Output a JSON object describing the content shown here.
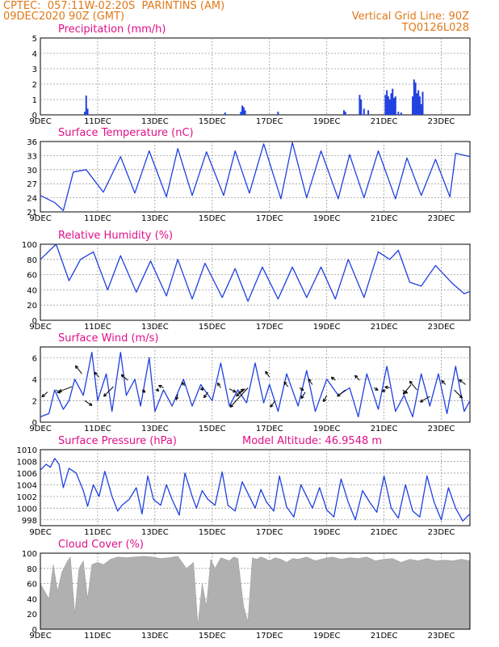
{
  "header": {
    "line1": "CPTEC:  057:11W-02:20S  PARINTINS (AM)",
    "line2": "09DEC2020 90Z (GMT)",
    "grid_note": "Vertical Grid Line: 90Z",
    "code": "TQ0126L028"
  },
  "colors": {
    "header": "#e07818",
    "title": "#e0108a",
    "line": "#2040e0",
    "bar": "#2040e0",
    "cloud": "#b0b0b0",
    "grid": "#999999"
  },
  "x_ticks": [
    "9DEC",
    "11DEC",
    "13DEC",
    "15DEC",
    "17DEC",
    "19DEC",
    "21DEC",
    "23DEC"
  ],
  "chart_data": [
    {
      "type": "bar",
      "title": "Precipitation (mm/h)",
      "ylim": [
        0,
        5
      ],
      "yticks": [
        "0",
        "1",
        "2",
        "3",
        "4",
        "5"
      ],
      "x_start": "9DEC",
      "x_end": "24DEC",
      "bars": [
        {
          "day": 1.55,
          "value": 0.2
        },
        {
          "day": 1.6,
          "value": 1.25
        },
        {
          "day": 1.65,
          "value": 0.4
        },
        {
          "day": 6.45,
          "value": 0.15
        },
        {
          "day": 7.0,
          "value": 0.2
        },
        {
          "day": 7.05,
          "value": 0.6
        },
        {
          "day": 7.1,
          "value": 0.5
        },
        {
          "day": 7.15,
          "value": 0.3
        },
        {
          "day": 8.3,
          "value": 0.2
        },
        {
          "day": 10.6,
          "value": 0.3
        },
        {
          "day": 10.65,
          "value": 0.2
        },
        {
          "day": 11.15,
          "value": 1.3
        },
        {
          "day": 11.2,
          "value": 1.0
        },
        {
          "day": 11.3,
          "value": 0.4
        },
        {
          "day": 11.45,
          "value": 0.3
        },
        {
          "day": 12.05,
          "value": 1.3
        },
        {
          "day": 12.1,
          "value": 1.6
        },
        {
          "day": 12.15,
          "value": 1.2
        },
        {
          "day": 12.2,
          "value": 1.0
        },
        {
          "day": 12.25,
          "value": 1.4
        },
        {
          "day": 12.3,
          "value": 1.7
        },
        {
          "day": 12.35,
          "value": 1.1
        },
        {
          "day": 12.4,
          "value": 1.2
        },
        {
          "day": 12.5,
          "value": 0.2
        },
        {
          "day": 12.6,
          "value": 0.15
        },
        {
          "day": 13.0,
          "value": 1.2
        },
        {
          "day": 13.05,
          "value": 2.3
        },
        {
          "day": 13.1,
          "value": 2.1
        },
        {
          "day": 13.15,
          "value": 1.4
        },
        {
          "day": 13.2,
          "value": 1.6
        },
        {
          "day": 13.25,
          "value": 1.2
        },
        {
          "day": 13.3,
          "value": 0.7
        },
        {
          "day": 13.35,
          "value": 1.5
        }
      ]
    },
    {
      "type": "line",
      "title": "Surface Temperature (nC)",
      "ylim": [
        21,
        36
      ],
      "yticks": [
        "21",
        "24",
        "27",
        "30",
        "33",
        "36"
      ],
      "x": [
        0,
        0.5,
        0.8,
        1.15,
        1.6,
        2.2,
        2.8,
        3.3,
        3.8,
        4.4,
        4.8,
        5.3,
        5.8,
        6.4,
        6.8,
        7.3,
        7.8,
        8.4,
        8.8,
        9.3,
        9.8,
        10.4,
        10.8,
        11.3,
        11.8,
        12.4,
        12.8,
        13.3,
        13.8,
        14.3,
        14.5,
        15.0
      ],
      "y": [
        24.5,
        23.0,
        21.3,
        29.5,
        30.0,
        25.2,
        32.8,
        25.0,
        34.0,
        24.2,
        34.5,
        24.5,
        33.8,
        24.5,
        34.0,
        25.0,
        35.5,
        23.8,
        35.8,
        24.0,
        34.0,
        23.8,
        33.2,
        24.0,
        34.0,
        23.8,
        32.5,
        24.5,
        32.2,
        24.2,
        33.5,
        32.8
      ]
    },
    {
      "type": "line",
      "title": "Relative Humidity (%)",
      "ylim": [
        0,
        100
      ],
      "yticks": [
        "0",
        "20",
        "40",
        "60",
        "80",
        "100"
      ],
      "x": [
        0,
        0.55,
        1.0,
        1.4,
        1.85,
        2.35,
        2.8,
        3.35,
        3.85,
        4.4,
        4.8,
        5.3,
        5.75,
        6.35,
        6.8,
        7.25,
        7.75,
        8.3,
        8.8,
        9.3,
        9.8,
        10.3,
        10.75,
        11.3,
        11.8,
        12.2,
        12.5,
        12.9,
        13.3,
        13.8,
        14.4,
        14.8,
        15.0
      ],
      "y": [
        80,
        100,
        52,
        80,
        90,
        40,
        85,
        37,
        78,
        32,
        80,
        28,
        75,
        30,
        68,
        25,
        70,
        28,
        70,
        30,
        70,
        28,
        80,
        30,
        90,
        80,
        92,
        50,
        45,
        72,
        48,
        35,
        38
      ]
    },
    {
      "type": "line",
      "title": "Surface Wind (m/s)",
      "ylim": [
        0,
        7
      ],
      "yticks": [
        "0",
        "2",
        "4",
        "6"
      ],
      "x": [
        0,
        0.3,
        0.5,
        0.8,
        1.0,
        1.2,
        1.5,
        1.8,
        2.0,
        2.3,
        2.5,
        2.8,
        3.0,
        3.3,
        3.5,
        3.8,
        4.0,
        4.3,
        4.6,
        5.0,
        5.3,
        5.6,
        6.0,
        6.3,
        6.6,
        6.9,
        7.2,
        7.5,
        7.8,
        8.0,
        8.3,
        8.6,
        9.0,
        9.3,
        9.6,
        10.0,
        10.4,
        10.8,
        11.1,
        11.4,
        11.8,
        12.1,
        12.4,
        12.7,
        13.0,
        13.3,
        13.6,
        13.9,
        14.2,
        14.5,
        14.8,
        15.0
      ],
      "y": [
        0.5,
        0.8,
        3.0,
        1.2,
        2.0,
        4.0,
        2.5,
        6.5,
        2.0,
        4.5,
        1.0,
        6.5,
        2.5,
        4.0,
        1.5,
        6.0,
        1.0,
        3.0,
        1.5,
        4.0,
        1.5,
        3.5,
        2.0,
        5.5,
        1.5,
        3.0,
        1.8,
        5.5,
        1.8,
        3.5,
        1.0,
        4.5,
        1.5,
        4.8,
        1.0,
        4.0,
        2.5,
        3.2,
        0.5,
        4.5,
        1.2,
        5.2,
        1.0,
        2.5,
        0.5,
        4.5,
        1.5,
        4.5,
        0.8,
        5.2,
        1.0,
        2.0
      ],
      "arrows": [
        {
          "day": 0.25,
          "y": 2.8,
          "dx": -7,
          "dy": 6
        },
        {
          "day": 0.55,
          "y": 3.0,
          "dx": 5,
          "dy": 4
        },
        {
          "day": 1.1,
          "y": 3.3,
          "dx": -16,
          "dy": 6
        },
        {
          "day": 1.45,
          "y": 4.5,
          "dx": -8,
          "dy": -10
        },
        {
          "day": 1.55,
          "y": 2.0,
          "dx": 9,
          "dy": 6
        },
        {
          "day": 2.05,
          "y": 4.2,
          "dx": -6,
          "dy": -6
        },
        {
          "day": 2.55,
          "y": 3.3,
          "dx": -12,
          "dy": 12
        },
        {
          "day": 3.05,
          "y": 3.9,
          "dx": -8,
          "dy": -7
        },
        {
          "day": 3.55,
          "y": 3.0,
          "dx": 4,
          "dy": 3
        },
        {
          "day": 4.05,
          "y": 3.1,
          "dx": 3,
          "dy": 3
        },
        {
          "day": 4.3,
          "y": 3.2,
          "dx": -6,
          "dy": -3
        },
        {
          "day": 4.8,
          "y": 2.6,
          "dx": -2,
          "dy": 7
        },
        {
          "day": 5.05,
          "y": 3.4,
          "dx": -4,
          "dy": -4
        },
        {
          "day": 5.6,
          "y": 3.2,
          "dx": 3,
          "dy": 3
        },
        {
          "day": 5.85,
          "y": 2.8,
          "dx": -5,
          "dy": 7
        },
        {
          "day": 6.3,
          "y": 3.2,
          "dx": -4,
          "dy": -6
        },
        {
          "day": 6.6,
          "y": 3.1,
          "dx": 8,
          "dy": 4
        },
        {
          "day": 6.9,
          "y": 2.7,
          "dx": 7,
          "dy": -5
        },
        {
          "day": 7.15,
          "y": 3.1,
          "dx": -11,
          "dy": 9
        },
        {
          "day": 7.25,
          "y": 3.2,
          "dx": -22,
          "dy": 24
        },
        {
          "day": 8.0,
          "y": 4.2,
          "dx": -5,
          "dy": -7
        },
        {
          "day": 8.2,
          "y": 2.0,
          "dx": -6,
          "dy": 8
        },
        {
          "day": 8.65,
          "y": 3.3,
          "dx": -5,
          "dy": -6
        },
        {
          "day": 9.05,
          "y": 3.2,
          "dx": 5,
          "dy": 3
        },
        {
          "day": 9.25,
          "y": 2.8,
          "dx": -5,
          "dy": 8
        },
        {
          "day": 9.5,
          "y": 3.5,
          "dx": -5,
          "dy": -7
        },
        {
          "day": 10.0,
          "y": 2.5,
          "dx": -4,
          "dy": 8
        },
        {
          "day": 10.3,
          "y": 3.9,
          "dx": -5,
          "dy": -4
        },
        {
          "day": 10.65,
          "y": 3.0,
          "dx": -10,
          "dy": 8
        },
        {
          "day": 11.15,
          "y": 3.9,
          "dx": -6,
          "dy": -6
        },
        {
          "day": 11.65,
          "y": 3.2,
          "dx": 5,
          "dy": 3
        },
        {
          "day": 12.05,
          "y": 3.0,
          "dx": -4,
          "dy": 2
        },
        {
          "day": 12.2,
          "y": 3.2,
          "dx": -6,
          "dy": -1
        },
        {
          "day": 12.65,
          "y": 3.0,
          "dx": 6,
          "dy": 4
        },
        {
          "day": 12.95,
          "y": 3.5,
          "dx": -10,
          "dy": 12
        },
        {
          "day": 13.15,
          "y": 3.0,
          "dx": -9,
          "dy": -11
        },
        {
          "day": 13.6,
          "y": 2.4,
          "dx": -12,
          "dy": 7
        },
        {
          "day": 14.15,
          "y": 3.5,
          "dx": -5,
          "dy": -5
        },
        {
          "day": 14.45,
          "y": 3.0,
          "dx": 10,
          "dy": 10
        },
        {
          "day": 14.85,
          "y": 3.5,
          "dx": -8,
          "dy": -6
        }
      ]
    },
    {
      "type": "line",
      "title": "Surface Pressure (hPa)",
      "annotation": "Model Altitude: 46.9548 m",
      "ylim": [
        997,
        1010
      ],
      "yticks": [
        "998",
        "1000",
        "1002",
        "1004",
        "1006",
        "1008",
        "1010"
      ],
      "x": [
        0,
        0.2,
        0.35,
        0.5,
        0.65,
        0.8,
        1.0,
        1.25,
        1.5,
        1.65,
        1.85,
        2.05,
        2.25,
        2.5,
        2.7,
        2.85,
        3.1,
        3.35,
        3.55,
        3.75,
        3.95,
        4.2,
        4.4,
        4.6,
        4.85,
        5.05,
        5.3,
        5.45,
        5.65,
        5.85,
        6.1,
        6.35,
        6.55,
        6.8,
        7.05,
        7.3,
        7.5,
        7.7,
        7.9,
        8.15,
        8.35,
        8.6,
        8.85,
        9.1,
        9.3,
        9.5,
        9.75,
        10.0,
        10.25,
        10.5,
        10.75,
        11.0,
        11.25,
        11.5,
        11.75,
        12.0,
        12.25,
        12.5,
        12.75,
        13.0,
        13.25,
        13.5,
        13.75,
        14.0,
        14.25,
        14.5,
        14.75,
        15.0
      ],
      "y": [
        1006.5,
        1007.5,
        1007.0,
        1008.5,
        1007.5,
        1003.5,
        1006.8,
        1006.0,
        1003.0,
        1000.3,
        1004.0,
        1002.0,
        1006.3,
        1002.0,
        999.5,
        1000.5,
        1001.5,
        1003.5,
        999.0,
        1005.5,
        1001.5,
        1000.5,
        1004.0,
        1001.5,
        998.8,
        1006.0,
        1002.0,
        1000.0,
        1003.0,
        1001.5,
        1000.5,
        1006.2,
        1000.5,
        999.5,
        1004.5,
        1002.0,
        1000.0,
        1003.2,
        1001.0,
        999.5,
        1005.5,
        1000.2,
        998.5,
        1004.0,
        1002.0,
        1000.0,
        1003.5,
        999.7,
        998.5,
        1005.0,
        1001.0,
        998.0,
        1003.0,
        1001.0,
        999.3,
        1005.5,
        1000.0,
        998.3,
        1004.0,
        999.5,
        998.5,
        1005.5,
        1001.0,
        998.0,
        1003.5,
        1000.0,
        997.8,
        999.0
      ]
    },
    {
      "type": "area",
      "title": "Cloud Cover (%)",
      "ylim": [
        0,
        100
      ],
      "yticks": [
        "0",
        "20",
        "40",
        "60",
        "80",
        "100"
      ],
      "x": [
        0,
        0.3,
        0.45,
        0.6,
        0.75,
        0.95,
        1.05,
        1.2,
        1.35,
        1.5,
        1.65,
        1.8,
        2.0,
        2.2,
        2.45,
        2.7,
        3.0,
        3.3,
        3.6,
        3.9,
        4.2,
        4.5,
        4.8,
        5.1,
        5.35,
        5.5,
        5.65,
        5.8,
        5.95,
        6.1,
        6.3,
        6.45,
        6.6,
        6.75,
        6.9,
        7.0,
        7.1,
        7.25,
        7.4,
        7.55,
        7.7,
        7.85,
        8.0,
        8.2,
        8.4,
        8.6,
        8.8,
        9.0,
        9.3,
        9.6,
        9.9,
        10.2,
        10.5,
        10.8,
        11.1,
        11.4,
        11.7,
        12.0,
        12.3,
        12.6,
        12.9,
        13.2,
        13.5,
        13.8,
        14.1,
        14.4,
        14.7,
        15.0
      ],
      "y": [
        60,
        40,
        85,
        50,
        75,
        90,
        95,
        20,
        80,
        90,
        40,
        85,
        88,
        85,
        92,
        95,
        94,
        95,
        96,
        95,
        93,
        94,
        96,
        80,
        88,
        5,
        60,
        30,
        92,
        80,
        94,
        92,
        90,
        95,
        93,
        60,
        30,
        10,
        94,
        92,
        95,
        93,
        90,
        94,
        92,
        88,
        93,
        92,
        95,
        90,
        93,
        95,
        92,
        94,
        93,
        95,
        90,
        92,
        93,
        88,
        92,
        90,
        93,
        90,
        91,
        90,
        92,
        90
      ]
    }
  ]
}
